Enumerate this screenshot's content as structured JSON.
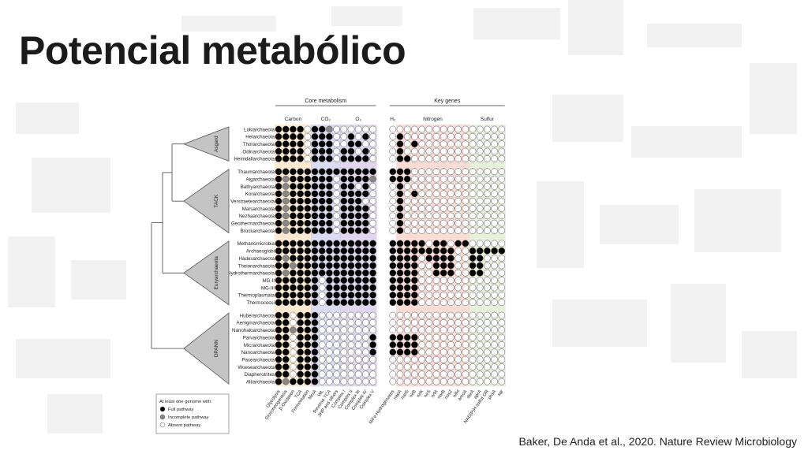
{
  "slide": {
    "title": "Potencial metabólico",
    "citation": "Baker, De Anda et al., 2020. Nature Review Microbiology"
  },
  "figure": {
    "header_core": "Core metabolism",
    "header_genes": "Key genes",
    "subheaders": [
      "Carbon",
      "CO₂",
      "O₂",
      "H₂",
      "Nitrogen",
      "Sulfur"
    ],
    "groups": [
      {
        "name": "Asgard",
        "taxa": [
          "Lokiarchaeota",
          "Helarchaeota",
          "Thorarchaeota",
          "Odinarchaeota",
          "Heimdallarchaeota"
        ]
      },
      {
        "name": "TACK",
        "taxa": [
          "Thaumarchaeota",
          "Aigarchaeota",
          "Bathyarchaeota",
          "Korarchaeota",
          "Verstraetearchaeota",
          "Marsarchaeota",
          "Nezhaarchaeota",
          "Geothermarchaeota",
          "Brockarchaeota"
        ]
      },
      {
        "name": "Euryarchaeota",
        "taxa": [
          "Methanomicrobia",
          "Archaeoglobi",
          "Hadesarchaeota",
          "Theionarchaeota",
          "Hydrothermarchaeota",
          "MG-II",
          "MG-III",
          "Thermoplasmata",
          "Thermococci"
        ]
      },
      {
        "name": "DPANN",
        "taxa": [
          "Huberarchaeota",
          "Aenigmarchaeota",
          "Nanohaloarchaeota",
          "Parvarchaeota",
          "Micrarchaeota",
          "Nanoarchaeota",
          "Pacearchaeota",
          "Woesearchaeota",
          "Diapherotrites",
          "Altiarchaeota"
        ]
      }
    ],
    "columns": [
      "Glycolysis",
      "Gluconeogenesis",
      "β-Oxidation",
      "TCA",
      "Fermentation",
      "McrA",
      "WL",
      "Reverse TCA",
      "3HP and others",
      "Complex I",
      "Complex II",
      "Complex III",
      "Complex IV",
      "Complex V",
      "NiFe Hydrogenases",
      "napA",
      "narG",
      "nirB",
      "nirK",
      "nirS",
      "nrfA",
      "norB",
      "nosZ",
      "nifH",
      "amoA",
      "dsrA",
      "aprA",
      "NAD(P)H sulfur OR",
      "phsA",
      "sqr"
    ],
    "column_colors": {
      "carbon": "#fbd7a7",
      "co2": "#b9bfea",
      "o2": "#c9b4df",
      "nitrogen": "#f8c0b0",
      "sulfur": "#cfe6bd"
    },
    "legend": {
      "title": "At least one genome with:",
      "items": [
        {
          "label": "Full pathway",
          "color": "#000000"
        },
        {
          "label": "Incomplete pathway",
          "color": "#888888"
        },
        {
          "label": "Absent pathway",
          "color": "#ffffff"
        }
      ]
    },
    "matrix": [
      "111101120000000000000000000000",
      "111101110010100100000000000000",
      "111101110011000101000000000000",
      "111101110110100100000000000000",
      "111101110111100110000000000000",
      "111111111111111110000000000000",
      "121111110111121110000000000000",
      "121111110110100100000000000000",
      "121111110111100101000000000000",
      "121111110111000100000000000000",
      "121111110111100100000000000000",
      "121111110111100100000000000000",
      "121111110111100100000000000000",
      "121111110111100100000000000000",
      "111111111111111111101101100000",
      "111111111111111111111110011111",
      "121111111111111111011110011000",
      "112111111111111111001110011000",
      "121111111111111111001110011000",
      "111111011111111111000000000000",
      "111111011111111111000000000000",
      "111111011111111111000000000000",
      "111111011111111111000000000000",
      "110111000000000000000000000000",
      "110111000000000000000000000000",
      "112111000000000000000000000000",
      "110111000000011111000000000000",
      "110111000000011111000000000000",
      "110111000000011111000000000000",
      "110111000000000000000000000000",
      "110111000000000000000000000000",
      "110111000000000000000000000000",
      "121111000000000000000000000000"
    ]
  }
}
